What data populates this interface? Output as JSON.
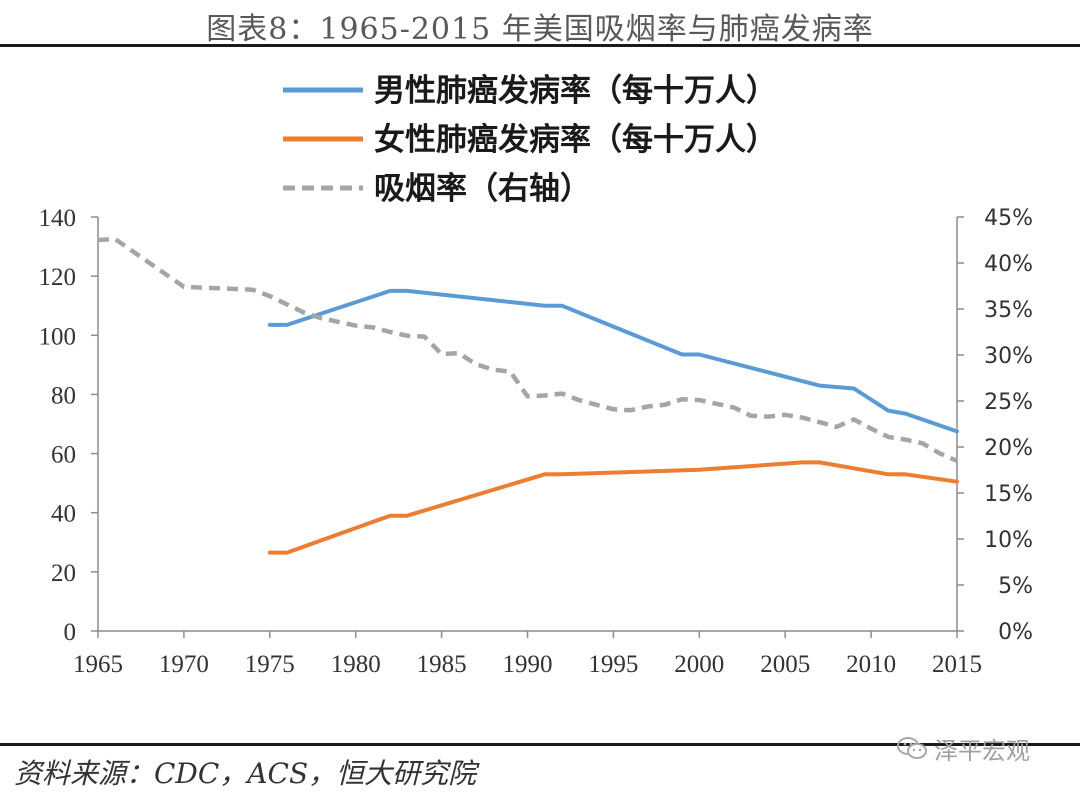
{
  "header": {
    "title": "图表8：1965-2015 年美国吸烟率与肺癌发病率"
  },
  "footer": {
    "source": "资料来源：CDC，ACS，恒大研究院",
    "watermark": "泽平宏观"
  },
  "chart_data": {
    "type": "line",
    "title": "图表8：1965-2015 年美国吸烟率与肺癌发病率",
    "xlim": [
      1965,
      2015
    ],
    "ylim_left": [
      0,
      140
    ],
    "ylim_right": [
      0,
      45
    ],
    "x_ticks": [
      "1965",
      "1970",
      "1975",
      "1980",
      "1985",
      "1990",
      "1995",
      "2000",
      "2005",
      "2010",
      "2015"
    ],
    "y_ticks_left": [
      "0",
      "20",
      "40",
      "60",
      "80",
      "100",
      "120",
      "140"
    ],
    "y_ticks_right": [
      "0%",
      "5%",
      "10%",
      "15%",
      "20%",
      "25%",
      "30%",
      "35%",
      "40%",
      "45%"
    ],
    "legend": [
      {
        "label": "男性肺癌发病率（每十万人）",
        "color": "#5b9bd5",
        "style": "solid"
      },
      {
        "label": "女性肺癌发病率（每十万人）",
        "color": "#ed7d31",
        "style": "solid"
      },
      {
        "label": "吸烟率（右轴）",
        "color": "#a5a5a5",
        "style": "dashed"
      }
    ],
    "series": [
      {
        "name": "男性肺癌发病率（每十万人）",
        "axis": "left",
        "color": "#5b9bd5",
        "style": "solid",
        "x": [
          1975,
          1976,
          1982,
          1983,
          1991,
          1992,
          1999,
          2000,
          2007,
          2009,
          2011,
          2012,
          2015
        ],
        "y": [
          103.5,
          103.5,
          115,
          115,
          110,
          110,
          93.5,
          93.5,
          83,
          82,
          74.5,
          73.5,
          67.5
        ]
      },
      {
        "name": "女性肺癌发病率（每十万人）",
        "axis": "left",
        "color": "#ed7d31",
        "style": "solid",
        "x": [
          1975,
          1976,
          1982,
          1983,
          1991,
          1992,
          2000,
          2006,
          2007,
          2011,
          2012,
          2015
        ],
        "y": [
          26.5,
          26.5,
          39,
          39,
          53,
          53,
          54.5,
          57,
          57,
          53,
          53,
          50.5
        ]
      },
      {
        "name": "吸烟率（右轴）",
        "axis": "right",
        "color": "#a5a5a5",
        "style": "dashed",
        "x": [
          1965,
          1966,
          1970,
          1974,
          1975,
          1977,
          1978,
          1980,
          1981,
          1982,
          1983,
          1984,
          1985,
          1986,
          1987,
          1988,
          1989,
          1990,
          1991,
          1992,
          1993,
          1994,
          1995,
          1996,
          1997,
          1998,
          1999,
          2000,
          2001,
          2002,
          2003,
          2004,
          2005,
          2006,
          2007,
          2008,
          2009,
          2010,
          2011,
          2012,
          2013,
          2014,
          2015
        ],
        "y": [
          42.5,
          42.6,
          37.4,
          37.1,
          36.4,
          34.6,
          34.0,
          33.2,
          33.0,
          32.5,
          32.1,
          32.0,
          30.1,
          30.2,
          29.0,
          28.4,
          28.2,
          25.5,
          25.6,
          25.8,
          25.1,
          24.6,
          24.1,
          24.0,
          24.4,
          24.6,
          25.2,
          25.1,
          24.7,
          24.3,
          23.4,
          23.3,
          23.5,
          23.2,
          22.7,
          22.2,
          23.0,
          22.0,
          21.1,
          20.8,
          20.4,
          19.3,
          18.5
        ]
      }
    ]
  }
}
